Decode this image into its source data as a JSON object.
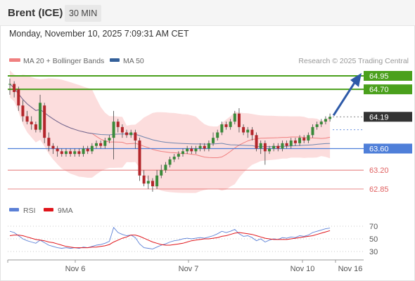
{
  "header": {
    "instrument": "Brent (ICE)",
    "timeframe": "30 MIN"
  },
  "datetime": "Monday, November 10, 2025 7:09:31 AM CET",
  "legend": {
    "ma20_bb": "MA 20 + Bollinger Bands",
    "ma50": "MA 50",
    "ma20_color": "#f08080",
    "ma50_color": "#34609a"
  },
  "credit": "Research © 2025 Trading Central",
  "colors": {
    "up": "#3a8a3a",
    "down": "#b3262b",
    "resistance": "#4aa01c",
    "pivot": "#4f7fd9",
    "support": "#e06060",
    "current": "#333333",
    "band": "#fbd7d7",
    "arrow": "#2e5aa8"
  },
  "chart_data": {
    "type": "candlestick",
    "y_range": [
      62.5,
      65.2
    ],
    "x_labels": [
      "Nov 6",
      "Nov 7",
      "Nov 10",
      "Nov 16"
    ],
    "levels": [
      {
        "value": 64.95,
        "label": "64.95",
        "kind": "resistance"
      },
      {
        "value": 64.7,
        "label": "64.70",
        "kind": "resistance"
      },
      {
        "value": 64.19,
        "label": "64.19",
        "kind": "current"
      },
      {
        "value": 63.6,
        "label": "63.60",
        "kind": "pivot"
      },
      {
        "value": 63.2,
        "label": "63.20",
        "kind": "support"
      },
      {
        "value": 62.85,
        "label": "62.85",
        "kind": "support"
      }
    ],
    "candles": [
      [
        64.8,
        64.8,
        64.9,
        64.6
      ],
      [
        64.8,
        64.65,
        64.85,
        64.55
      ],
      [
        64.7,
        64.4,
        64.75,
        64.3
      ],
      [
        64.4,
        64.2,
        64.5,
        64.1
      ],
      [
        64.2,
        64.1,
        64.3,
        64.05
      ],
      [
        64.1,
        64.05,
        64.2,
        63.95
      ],
      [
        64.05,
        63.95,
        64.1,
        63.9
      ],
      [
        63.95,
        64.45,
        64.6,
        63.9
      ],
      [
        64.4,
        63.8,
        64.45,
        63.7
      ],
      [
        63.8,
        63.65,
        63.9,
        63.55
      ],
      [
        63.65,
        63.6,
        63.7,
        63.5
      ],
      [
        63.6,
        63.55,
        63.65,
        63.45
      ],
      [
        63.55,
        63.5,
        63.6,
        63.45
      ],
      [
        63.5,
        63.55,
        63.6,
        63.45
      ],
      [
        63.55,
        63.5,
        63.6,
        63.45
      ],
      [
        63.5,
        63.55,
        63.6,
        63.45
      ],
      [
        63.55,
        63.5,
        63.6,
        63.45
      ],
      [
        63.5,
        63.6,
        63.65,
        63.45
      ],
      [
        63.6,
        63.55,
        63.65,
        63.5
      ],
      [
        63.55,
        63.65,
        63.7,
        63.5
      ],
      [
        63.65,
        63.7,
        63.75,
        63.6
      ],
      [
        63.7,
        63.65,
        63.75,
        63.6
      ],
      [
        63.65,
        63.75,
        63.8,
        63.6
      ],
      [
        63.75,
        63.8,
        63.85,
        63.7
      ],
      [
        63.8,
        64.1,
        64.3,
        63.4
      ],
      [
        64.1,
        64.0,
        64.15,
        63.9
      ],
      [
        64.0,
        63.9,
        64.05,
        63.8
      ],
      [
        63.9,
        63.85,
        63.95,
        63.8
      ],
      [
        63.85,
        63.9,
        63.95,
        63.8
      ],
      [
        63.9,
        63.75,
        63.95,
        63.6
      ],
      [
        63.75,
        63.1,
        63.8,
        63.0
      ],
      [
        63.1,
        62.95,
        63.2,
        62.9
      ],
      [
        62.95,
        63.0,
        63.1,
        62.85
      ],
      [
        63.0,
        62.9,
        63.05,
        62.8
      ],
      [
        62.9,
        63.1,
        63.2,
        62.85
      ],
      [
        63.1,
        63.2,
        63.3,
        63.05
      ],
      [
        63.2,
        63.3,
        63.35,
        63.15
      ],
      [
        63.3,
        63.4,
        63.45,
        63.25
      ],
      [
        63.4,
        63.45,
        63.5,
        63.35
      ],
      [
        63.45,
        63.5,
        63.55,
        63.4
      ],
      [
        63.5,
        63.55,
        63.6,
        63.45
      ],
      [
        63.55,
        63.6,
        63.65,
        63.5
      ],
      [
        63.6,
        63.55,
        63.65,
        63.5
      ],
      [
        63.55,
        63.6,
        63.65,
        63.5
      ],
      [
        63.6,
        63.65,
        63.7,
        63.55
      ],
      [
        63.65,
        63.6,
        63.7,
        63.55
      ],
      [
        63.6,
        63.7,
        63.75,
        63.55
      ],
      [
        63.7,
        63.8,
        63.9,
        63.65
      ],
      [
        63.8,
        63.9,
        63.95,
        63.75
      ],
      [
        63.9,
        64.05,
        64.1,
        63.85
      ],
      [
        64.05,
        64.0,
        64.1,
        63.95
      ],
      [
        64.0,
        64.1,
        64.15,
        63.95
      ],
      [
        64.1,
        64.25,
        64.3,
        64.05
      ],
      [
        64.25,
        64.0,
        64.35,
        63.9
      ],
      [
        64.0,
        63.9,
        64.05,
        63.85
      ],
      [
        63.9,
        63.95,
        64.0,
        63.8
      ],
      [
        63.95,
        63.85,
        64.0,
        63.75
      ],
      [
        63.85,
        63.6,
        63.9,
        63.55
      ],
      [
        63.6,
        63.7,
        63.75,
        63.5
      ],
      [
        63.7,
        63.55,
        63.75,
        63.3
      ],
      [
        63.55,
        63.6,
        63.65,
        63.5
      ],
      [
        63.6,
        63.65,
        63.7,
        63.55
      ],
      [
        63.65,
        63.6,
        63.7,
        63.55
      ],
      [
        63.6,
        63.7,
        63.75,
        63.55
      ],
      [
        63.7,
        63.65,
        63.75,
        63.6
      ],
      [
        63.65,
        63.75,
        63.8,
        63.6
      ],
      [
        63.75,
        63.7,
        63.8,
        63.65
      ],
      [
        63.7,
        63.8,
        63.85,
        63.65
      ],
      [
        63.8,
        63.75,
        63.85,
        63.7
      ],
      [
        63.75,
        63.85,
        63.9,
        63.7
      ],
      [
        63.85,
        64.0,
        64.05,
        63.8
      ],
      [
        64.0,
        64.05,
        64.1,
        63.95
      ],
      [
        64.05,
        64.1,
        64.15,
        64.0
      ],
      [
        64.1,
        64.15,
        64.2,
        64.05
      ],
      [
        64.15,
        64.19,
        64.25,
        64.1
      ]
    ],
    "rsi_panel": {
      "legend": [
        "RSI",
        "9MA"
      ],
      "rsi_color": "#5b80d6",
      "ma_color": "#e0151b",
      "y_ticks": [
        70,
        50,
        30
      ],
      "y_range": [
        20,
        80
      ],
      "rsi": [
        62,
        60,
        55,
        50,
        47,
        45,
        43,
        48,
        44,
        40,
        38,
        36,
        35,
        36,
        35,
        36,
        35,
        37,
        36,
        38,
        40,
        41,
        43,
        46,
        68,
        60,
        57,
        55,
        56,
        52,
        42,
        36,
        35,
        34,
        37,
        40,
        42,
        45,
        47,
        48,
        50,
        51,
        50,
        51,
        52,
        51,
        53,
        55,
        58,
        62,
        60,
        62,
        65,
        58,
        54,
        55,
        52,
        47,
        50,
        45,
        48,
        50,
        49,
        52,
        51,
        53,
        52,
        55,
        54,
        56,
        60,
        62,
        64,
        66,
        67
      ],
      "rsi_ma": [
        55,
        56,
        56,
        55,
        53,
        51,
        49,
        48,
        47,
        45,
        44,
        42,
        40,
        38,
        37,
        36,
        36,
        36,
        36,
        37,
        37,
        38,
        39,
        41,
        45,
        48,
        51,
        53,
        56,
        56,
        54,
        51,
        48,
        45,
        43,
        41,
        40,
        40,
        41,
        42,
        43,
        45,
        47,
        48,
        49,
        50,
        50,
        51,
        52,
        54,
        55,
        57,
        59,
        60,
        59,
        58,
        57,
        55,
        53,
        51,
        50,
        49,
        49,
        49,
        49,
        50,
        51,
        52,
        53,
        54,
        55,
        57,
        59,
        61,
        63
      ]
    }
  }
}
